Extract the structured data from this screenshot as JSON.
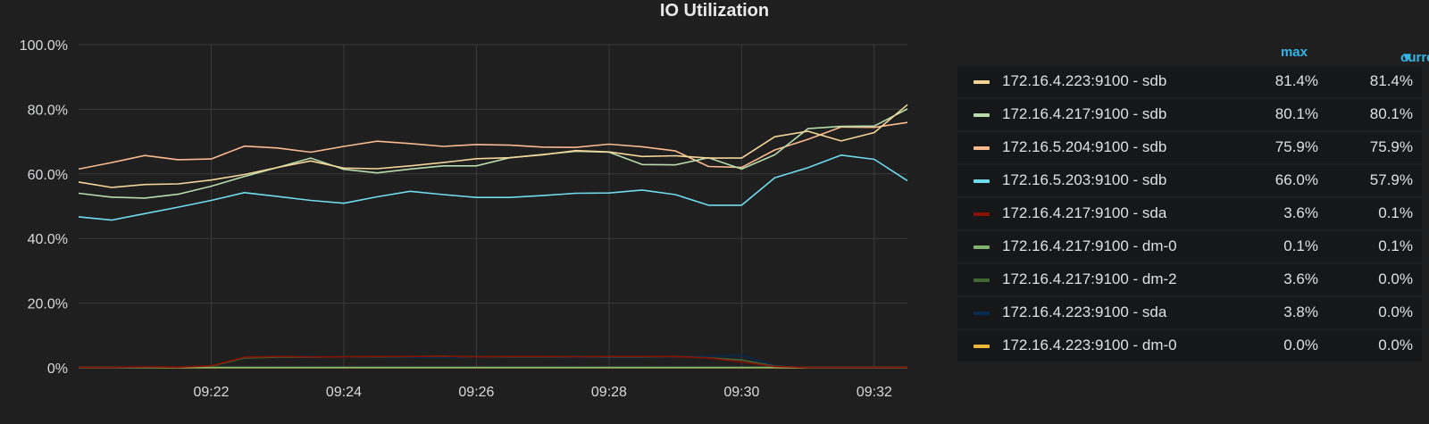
{
  "panel": {
    "title": "IO Utilization",
    "legend_headers": {
      "max": "max",
      "current": "current",
      "sort_icon": "caret-down-icon"
    }
  },
  "chart_data": {
    "type": "line",
    "title": "IO Utilization",
    "xlabel": "",
    "ylabel": "",
    "x": [
      "09:20:00",
      "09:20:30",
      "09:21:00",
      "09:21:30",
      "09:22:00",
      "09:22:30",
      "09:23:00",
      "09:23:30",
      "09:24:00",
      "09:24:30",
      "09:25:00",
      "09:25:30",
      "09:26:00",
      "09:26:30",
      "09:27:00",
      "09:27:30",
      "09:28:00",
      "09:28:30",
      "09:29:00",
      "09:29:30",
      "09:30:00",
      "09:30:30",
      "09:31:00",
      "09:31:30",
      "09:32:00",
      "09:32:30"
    ],
    "x_ticks": [
      "09:22",
      "09:24",
      "09:26",
      "09:28",
      "09:30",
      "09:32"
    ],
    "y_ticks": [
      "0%",
      "20.0%",
      "40.0%",
      "60.0%",
      "80.0%",
      "100.0%"
    ],
    "ylim": [
      0,
      100
    ],
    "grid": true,
    "legend_position": "right",
    "series": [
      {
        "name": "172.16.4.223:9100 - sdb",
        "color": "#f4d598",
        "max": "81.4%",
        "current": "81.4%",
        "values": [
          57.5,
          55.8,
          56.7,
          56.9,
          58.1,
          59.8,
          62.0,
          64.0,
          61.8,
          61.6,
          62.5,
          63.5,
          64.7,
          65.0,
          65.9,
          67.2,
          66.8,
          65.4,
          65.6,
          64.9,
          64.9,
          71.5,
          73.2,
          70.2,
          72.8,
          81.4
        ]
      },
      {
        "name": "172.16.4.217:9100 - sdb",
        "color": "#b7dbab",
        "max": "80.1%",
        "current": "80.1%",
        "values": [
          54.0,
          52.8,
          52.5,
          53.7,
          56.2,
          59.2,
          62.0,
          64.9,
          61.4,
          60.3,
          61.5,
          62.5,
          62.5,
          65.0,
          66.0,
          67.0,
          66.7,
          62.9,
          62.8,
          65.0,
          61.5,
          65.9,
          74.0,
          74.7,
          74.8,
          80.1
        ]
      },
      {
        "name": "172.16.5.204:9100 - sdb",
        "color": "#f9ba8f",
        "max": "75.9%",
        "current": "75.9%",
        "values": [
          61.5,
          63.5,
          65.7,
          64.4,
          64.6,
          68.6,
          68.0,
          66.7,
          68.5,
          70.1,
          69.4,
          68.5,
          69.1,
          68.9,
          68.3,
          68.2,
          69.2,
          68.4,
          67.1,
          62.3,
          62.0,
          67.4,
          70.7,
          74.5,
          74.4,
          75.9
        ]
      },
      {
        "name": "172.16.5.203:9100 - sdb",
        "color": "#70dbed",
        "max": "66.0%",
        "current": "57.9%",
        "values": [
          46.7,
          45.7,
          47.7,
          49.7,
          51.8,
          54.2,
          53.0,
          51.8,
          50.9,
          52.9,
          54.6,
          53.6,
          52.7,
          52.7,
          53.3,
          54.0,
          54.1,
          55.0,
          53.6,
          50.3,
          50.3,
          58.8,
          61.9,
          65.8,
          64.5,
          57.9
        ]
      },
      {
        "name": "172.16.4.217:9100 - sda",
        "color": "#890f02",
        "max": "3.6%",
        "current": "0.1%",
        "values": [
          0.1,
          0.1,
          0.3,
          0.2,
          0.6,
          3.3,
          3.5,
          3.4,
          3.4,
          3.5,
          3.5,
          3.6,
          3.4,
          3.5,
          3.5,
          3.4,
          3.5,
          3.5,
          3.5,
          3.0,
          1.8,
          0.4,
          0.1,
          0.1,
          0.1,
          0.1
        ]
      },
      {
        "name": "172.16.4.217:9100 - dm-0",
        "color": "#7eb26d",
        "max": "0.1%",
        "current": "0.1%",
        "values": [
          0.1,
          0.1,
          0.1,
          0.1,
          0.1,
          0.1,
          0.1,
          0.1,
          0.1,
          0.1,
          0.1,
          0.1,
          0.1,
          0.1,
          0.1,
          0.1,
          0.1,
          0.1,
          0.1,
          0.1,
          0.1,
          0.1,
          0.1,
          0.1,
          0.1,
          0.1
        ]
      },
      {
        "name": "172.16.4.217:9100 - dm-2",
        "color": "#3f6833",
        "max": "3.6%",
        "current": "0.0%",
        "values": [
          0.0,
          0.0,
          0.1,
          0.1,
          0.5,
          3.0,
          3.3,
          3.3,
          3.4,
          3.4,
          3.5,
          3.6,
          3.4,
          3.4,
          3.4,
          3.4,
          3.4,
          3.4,
          3.5,
          3.1,
          2.4,
          0.5,
          0.0,
          0.0,
          0.0,
          0.0
        ]
      },
      {
        "name": "172.16.4.223:9100 - sda",
        "color": "#052b51",
        "max": "3.8%",
        "current": "0.0%",
        "values": [
          0.0,
          0.0,
          0.0,
          0.1,
          0.5,
          3.0,
          3.5,
          3.6,
          3.3,
          3.3,
          3.2,
          3.2,
          3.3,
          3.3,
          3.3,
          3.2,
          3.2,
          3.2,
          3.4,
          3.6,
          3.8,
          0.7,
          0.0,
          0.0,
          0.0,
          0.0
        ]
      },
      {
        "name": "172.16.4.223:9100 - dm-0",
        "color": "#eab839",
        "max": "0.0%",
        "current": "0.0%",
        "values": [
          0.0,
          0.0,
          0.0,
          0.0,
          0.0,
          0.0,
          0.0,
          0.0,
          0.0,
          0.0,
          0.0,
          0.0,
          0.0,
          0.0,
          0.0,
          0.0,
          0.0,
          0.0,
          0.0,
          0.0,
          0.0,
          0.0,
          0.0,
          0.0,
          0.0,
          0.0
        ]
      }
    ]
  }
}
